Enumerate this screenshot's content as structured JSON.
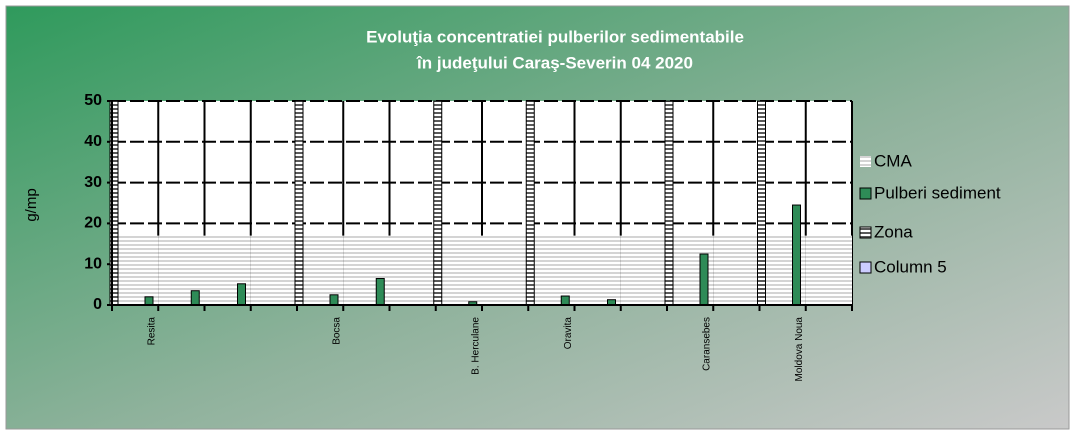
{
  "chart_data": {
    "type": "bar",
    "title": [
      "Evoluţia concentratiei  pulberilor sedimentabile",
      "în judeţului Caraş-Severin 04 2020"
    ],
    "y_label": "g/mp",
    "categories": [
      "Resita",
      null,
      null,
      null,
      "Bocsa",
      null,
      null,
      "B. Herculane",
      null,
      "Oravita",
      null,
      null,
      "Caransebes",
      null,
      "Moldova Noua",
      null
    ],
    "series": [
      {
        "name": "CMA",
        "color": "#d4d4d4",
        "pattern": "stripes",
        "values": [
          17,
          17,
          17,
          17,
          17,
          17,
          17,
          17,
          17,
          17,
          17,
          17,
          17,
          17,
          17,
          17
        ]
      },
      {
        "name": "Pulberi sediment",
        "color": "#2e8b57",
        "values": [
          2,
          3.5,
          5.2,
          null,
          2.5,
          6.5,
          null,
          0.8,
          null,
          2.2,
          1.3,
          null,
          12.5,
          null,
          24.5,
          null
        ]
      },
      {
        "name": "Zona",
        "color": "#5a5a5a",
        "pattern": "stripes",
        "values": [
          50,
          null,
          null,
          null,
          50,
          null,
          null,
          50,
          null,
          50,
          null,
          null,
          50,
          null,
          50,
          null
        ]
      },
      {
        "name": "Column 5",
        "color": "#ccccff",
        "values": [
          null,
          null,
          null,
          null,
          null,
          null,
          null,
          null,
          null,
          null,
          null,
          null,
          null,
          null,
          null,
          null
        ]
      }
    ],
    "ylim": [
      0,
      50
    ],
    "yticks": [
      0,
      10,
      20,
      30,
      40,
      50
    ],
    "grid": true,
    "legend": "right"
  }
}
